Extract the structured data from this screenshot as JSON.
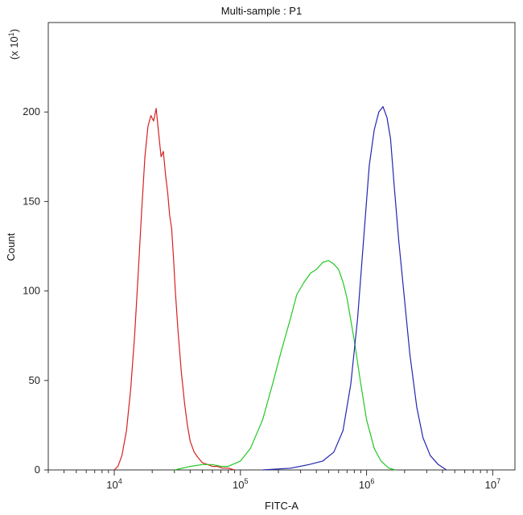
{
  "chart_data": {
    "type": "line",
    "title": "Multi-sample : P1",
    "xlabel": "FITC-A",
    "ylabel": "Count",
    "y_multiplier": "(x 10",
    "y_multiplier_exp": "1",
    "y_multiplier_close": ")",
    "x_scale": "log",
    "xlim": [
      3000,
      15000000
    ],
    "ylim": [
      0,
      250
    ],
    "grid": false,
    "legend": "none",
    "x_ticks": [
      {
        "base": "10",
        "exp": "4",
        "value": 10000
      },
      {
        "base": "10",
        "exp": "5",
        "value": 100000
      },
      {
        "base": "10",
        "exp": "6",
        "value": 1000000
      },
      {
        "base": "10",
        "exp": "7",
        "value": 10000000
      }
    ],
    "y_ticks": [
      {
        "label": "0",
        "value": 0
      },
      {
        "label": "50",
        "value": 50
      },
      {
        "label": "100",
        "value": 100
      },
      {
        "label": "150",
        "value": 150
      },
      {
        "label": "200",
        "value": 200
      }
    ],
    "series": [
      {
        "color": "#d62020",
        "x": [
          10000,
          10700,
          11500,
          12500,
          13500,
          14500,
          15500,
          16500,
          17500,
          18500,
          19500,
          20500,
          21500,
          22500,
          23500,
          24500,
          25500,
          26500,
          27500,
          28500,
          29500,
          30500,
          32000,
          34000,
          36000,
          38000,
          40000,
          43000,
          46000,
          50000,
          55000,
          60000,
          66000,
          72000,
          80000,
          90000
        ],
        "y": [
          0,
          2,
          8,
          22,
          45,
          75,
          110,
          145,
          175,
          192,
          198,
          195,
          202,
          188,
          175,
          178,
          165,
          155,
          142,
          135,
          118,
          100,
          78,
          55,
          38,
          25,
          16,
          10,
          7,
          4,
          3,
          2,
          2,
          1,
          1,
          0
        ]
      },
      {
        "color": "#22c822",
        "x": [
          30000,
          40000,
          50000,
          60000,
          70000,
          80000,
          100000,
          120000,
          150000,
          180000,
          210000,
          250000,
          280000,
          320000,
          360000,
          400000,
          450000,
          500000,
          550000,
          600000,
          650000,
          700000,
          800000,
          900000,
          1000000,
          1150000,
          1300000,
          1500000,
          1700000
        ],
        "y": [
          0,
          2,
          3,
          3,
          2,
          2,
          5,
          12,
          28,
          48,
          66,
          85,
          98,
          105,
          110,
          112,
          116,
          117,
          115,
          112,
          105,
          96,
          72,
          48,
          28,
          12,
          5,
          1,
          0
        ]
      },
      {
        "color": "#2525b0",
        "x": [
          150000,
          250000,
          350000,
          450000,
          550000,
          650000,
          750000,
          850000,
          950000,
          1050000,
          1150000,
          1250000,
          1350000,
          1450000,
          1550000,
          1650000,
          1800000,
          2000000,
          2200000,
          2500000,
          2800000,
          3200000,
          3700000,
          4300000
        ],
        "y": [
          0,
          1,
          3,
          5,
          10,
          22,
          48,
          85,
          130,
          170,
          190,
          200,
          203,
          197,
          185,
          160,
          128,
          95,
          65,
          35,
          18,
          8,
          3,
          0
        ]
      }
    ]
  }
}
